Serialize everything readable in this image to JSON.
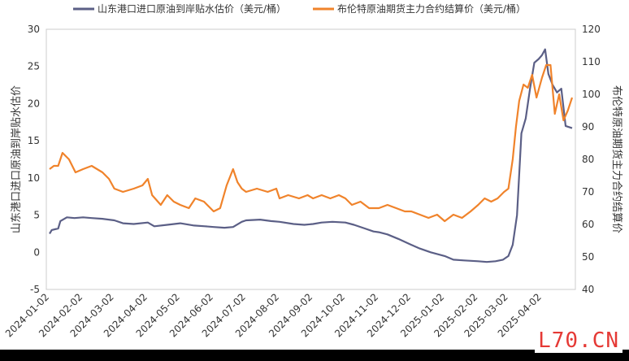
{
  "chart_data": {
    "type": "line",
    "title": "",
    "x": [
      "2024-01-02",
      "2024-02-02",
      "2024-03-02",
      "2024-04-02",
      "2024-05-02",
      "2024-06-02",
      "2024-07-02",
      "2024-08-02",
      "2024-09-02",
      "2024-10-02",
      "2024-11-02",
      "2024-12-02",
      "2025-01-02",
      "2025-02-02",
      "2025-03-02",
      "2025-04-02"
    ],
    "y_left": {
      "label": "山东港口进口原油到岸贴水估价",
      "ylim": [
        -5,
        30
      ],
      "ticks": [
        30,
        25,
        20,
        15,
        10,
        5,
        0,
        -5
      ]
    },
    "y_right": {
      "label": "布伦特原油期货主力合约结算价",
      "ylim": [
        40,
        120
      ],
      "ticks": [
        120,
        110,
        100,
        90,
        80,
        70,
        60,
        50,
        40
      ]
    },
    "grid": false,
    "legend_position": "top",
    "series": [
      {
        "name": "山东港口进口原油到岸贴水估价（美元/桶）",
        "axis": "left",
        "color": "#5b5f86",
        "points": [
          [
            "2024-01-02",
            2.5
          ],
          [
            "2024-01-04",
            3.0
          ],
          [
            "2024-01-10",
            3.2
          ],
          [
            "2024-01-12",
            4.2
          ],
          [
            "2024-01-18",
            4.7
          ],
          [
            "2024-01-25",
            4.6
          ],
          [
            "2024-02-02",
            4.7
          ],
          [
            "2024-02-10",
            4.6
          ],
          [
            "2024-02-20",
            4.5
          ],
          [
            "2024-03-02",
            4.3
          ],
          [
            "2024-03-10",
            3.9
          ],
          [
            "2024-03-20",
            3.8
          ],
          [
            "2024-04-02",
            4.0
          ],
          [
            "2024-04-08",
            3.5
          ],
          [
            "2024-04-20",
            3.7
          ],
          [
            "2024-05-02",
            3.9
          ],
          [
            "2024-05-15",
            3.6
          ],
          [
            "2024-05-25",
            3.5
          ],
          [
            "2024-06-02",
            3.4
          ],
          [
            "2024-06-12",
            3.3
          ],
          [
            "2024-06-20",
            3.4
          ],
          [
            "2024-06-28",
            4.1
          ],
          [
            "2024-07-02",
            4.3
          ],
          [
            "2024-07-15",
            4.4
          ],
          [
            "2024-07-25",
            4.2
          ],
          [
            "2024-08-02",
            4.1
          ],
          [
            "2024-08-15",
            3.8
          ],
          [
            "2024-08-25",
            3.7
          ],
          [
            "2024-09-02",
            3.8
          ],
          [
            "2024-09-10",
            4.0
          ],
          [
            "2024-09-20",
            4.1
          ],
          [
            "2024-10-02",
            4.0
          ],
          [
            "2024-10-10",
            3.7
          ],
          [
            "2024-10-20",
            3.2
          ],
          [
            "2024-10-28",
            2.8
          ],
          [
            "2024-11-02",
            2.7
          ],
          [
            "2024-11-10",
            2.4
          ],
          [
            "2024-11-20",
            1.8
          ],
          [
            "2024-12-02",
            1.0
          ],
          [
            "2024-12-10",
            0.5
          ],
          [
            "2024-12-20",
            0.0
          ],
          [
            "2025-01-02",
            -0.5
          ],
          [
            "2025-01-10",
            -1.0
          ],
          [
            "2025-01-20",
            -1.1
          ],
          [
            "2025-02-02",
            -1.2
          ],
          [
            "2025-02-10",
            -1.3
          ],
          [
            "2025-02-18",
            -1.2
          ],
          [
            "2025-02-25",
            -1.0
          ],
          [
            "2025-03-02",
            -0.5
          ],
          [
            "2025-03-06",
            1.0
          ],
          [
            "2025-03-10",
            5.0
          ],
          [
            "2025-03-14",
            16.0
          ],
          [
            "2025-03-18",
            18.0
          ],
          [
            "2025-03-22",
            22.0
          ],
          [
            "2025-03-26",
            25.5
          ],
          [
            "2025-03-30",
            26.0
          ],
          [
            "2025-04-02",
            26.5
          ],
          [
            "2025-04-05",
            27.3
          ],
          [
            "2025-04-08",
            24.0
          ],
          [
            "2025-04-12",
            22.5
          ],
          [
            "2025-04-16",
            21.5
          ],
          [
            "2025-04-20",
            22.0
          ],
          [
            "2025-04-24",
            17.0
          ],
          [
            "2025-04-30",
            16.7
          ]
        ]
      },
      {
        "name": "布伦特原油期货主力合约结算价（美元/桶）",
        "axis": "right",
        "color": "#f0832b",
        "points": [
          [
            "2024-01-02",
            77
          ],
          [
            "2024-01-06",
            78
          ],
          [
            "2024-01-10",
            78
          ],
          [
            "2024-01-14",
            82
          ],
          [
            "2024-01-20",
            80
          ],
          [
            "2024-01-26",
            76
          ],
          [
            "2024-02-02",
            77
          ],
          [
            "2024-02-10",
            78
          ],
          [
            "2024-02-20",
            76
          ],
          [
            "2024-02-26",
            74
          ],
          [
            "2024-03-02",
            71
          ],
          [
            "2024-03-10",
            70
          ],
          [
            "2024-03-20",
            71
          ],
          [
            "2024-03-28",
            72
          ],
          [
            "2024-04-02",
            74
          ],
          [
            "2024-04-06",
            69
          ],
          [
            "2024-04-14",
            66
          ],
          [
            "2024-04-20",
            69
          ],
          [
            "2024-04-26",
            67
          ],
          [
            "2024-05-02",
            66
          ],
          [
            "2024-05-10",
            65
          ],
          [
            "2024-05-16",
            68
          ],
          [
            "2024-05-24",
            67
          ],
          [
            "2024-06-02",
            64
          ],
          [
            "2024-06-08",
            65
          ],
          [
            "2024-06-14",
            72
          ],
          [
            "2024-06-20",
            77
          ],
          [
            "2024-06-24",
            73
          ],
          [
            "2024-06-28",
            71
          ],
          [
            "2024-07-02",
            70
          ],
          [
            "2024-07-12",
            71
          ],
          [
            "2024-07-22",
            70
          ],
          [
            "2024-07-30",
            71
          ],
          [
            "2024-08-02",
            68
          ],
          [
            "2024-08-10",
            69
          ],
          [
            "2024-08-20",
            68
          ],
          [
            "2024-08-28",
            69
          ],
          [
            "2024-09-02",
            68
          ],
          [
            "2024-09-10",
            69
          ],
          [
            "2024-09-18",
            68
          ],
          [
            "2024-09-26",
            69
          ],
          [
            "2024-10-02",
            68
          ],
          [
            "2024-10-08",
            66
          ],
          [
            "2024-10-16",
            67
          ],
          [
            "2024-10-24",
            65
          ],
          [
            "2024-11-02",
            65
          ],
          [
            "2024-11-10",
            66
          ],
          [
            "2024-11-18",
            65
          ],
          [
            "2024-11-26",
            64
          ],
          [
            "2024-12-02",
            64
          ],
          [
            "2024-12-10",
            63
          ],
          [
            "2024-12-18",
            62
          ],
          [
            "2024-12-26",
            63
          ],
          [
            "2025-01-02",
            61
          ],
          [
            "2025-01-10",
            63
          ],
          [
            "2025-01-18",
            62
          ],
          [
            "2025-01-26",
            64
          ],
          [
            "2025-02-02",
            66
          ],
          [
            "2025-02-08",
            68
          ],
          [
            "2025-02-14",
            67
          ],
          [
            "2025-02-20",
            68
          ],
          [
            "2025-02-26",
            70
          ],
          [
            "2025-03-02",
            71
          ],
          [
            "2025-03-06",
            80
          ],
          [
            "2025-03-09",
            90
          ],
          [
            "2025-03-12",
            98
          ],
          [
            "2025-03-16",
            103
          ],
          [
            "2025-03-20",
            102
          ],
          [
            "2025-03-24",
            106
          ],
          [
            "2025-03-28",
            99
          ],
          [
            "2025-04-02",
            105
          ],
          [
            "2025-04-06",
            109
          ],
          [
            "2025-04-10",
            109
          ],
          [
            "2025-04-14",
            94
          ],
          [
            "2025-04-18",
            100
          ],
          [
            "2025-04-22",
            92
          ],
          [
            "2025-04-26",
            95
          ],
          [
            "2025-04-30",
            99
          ]
        ]
      }
    ]
  },
  "watermark": "L70.CN"
}
